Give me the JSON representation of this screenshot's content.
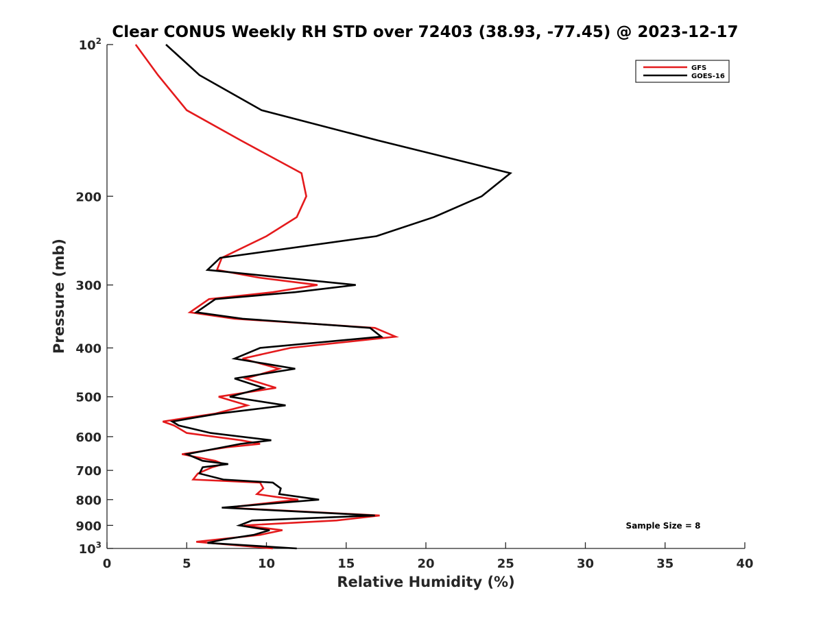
{
  "chart_data": {
    "type": "line",
    "title": "Clear CONUS Weekly RH STD over 72403 (38.93, -77.45) @ 2023-12-17",
    "xlabel": "Relative Humidity (%)",
    "ylabel": "Pressure (mb)",
    "xlim": [
      0,
      40
    ],
    "ylim": [
      100,
      1000
    ],
    "y_scale": "log",
    "y_reversed": true,
    "grid": false,
    "legend_position": "top-right",
    "x_ticks": [
      "0",
      "5",
      "10",
      "15",
      "20",
      "25",
      "30",
      "35",
      "40"
    ],
    "y_ticks": [
      {
        "value": 100,
        "base": "10",
        "exp": "2"
      },
      {
        "value": 200,
        "label": "200"
      },
      {
        "value": 300,
        "label": "300"
      },
      {
        "value": 400,
        "label": "400"
      },
      {
        "value": 500,
        "label": "500"
      },
      {
        "value": 600,
        "label": "600"
      },
      {
        "value": 700,
        "label": "700"
      },
      {
        "value": 800,
        "label": "800"
      },
      {
        "value": 900,
        "label": "900"
      },
      {
        "value": 1000,
        "base": "10",
        "exp": "3"
      }
    ],
    "annotation": "Sample Size = 8",
    "series": [
      {
        "name": "GFS",
        "color": "#e41a1c",
        "points": [
          [
            1.8,
            100
          ],
          [
            3.2,
            115
          ],
          [
            5.0,
            135
          ],
          [
            8.4,
            155
          ],
          [
            12.2,
            180
          ],
          [
            12.5,
            200
          ],
          [
            11.9,
            220
          ],
          [
            10.0,
            240
          ],
          [
            7.2,
            265
          ],
          [
            6.9,
            280
          ],
          [
            9.5,
            290
          ],
          [
            13.2,
            300
          ],
          [
            10.4,
            310
          ],
          [
            6.4,
            320
          ],
          [
            5.2,
            340
          ],
          [
            8.0,
            350
          ],
          [
            16.8,
            365
          ],
          [
            18.1,
            380
          ],
          [
            11.5,
            400
          ],
          [
            8.5,
            420
          ],
          [
            10.8,
            440
          ],
          [
            8.7,
            460
          ],
          [
            10.6,
            480
          ],
          [
            7.0,
            500
          ],
          [
            8.8,
            520
          ],
          [
            6.8,
            540
          ],
          [
            5.1,
            550
          ],
          [
            3.5,
            560
          ],
          [
            4.2,
            570
          ],
          [
            5.0,
            590
          ],
          [
            8.4,
            610
          ],
          [
            9.6,
            620
          ],
          [
            7.5,
            630
          ],
          [
            4.7,
            650
          ],
          [
            6.8,
            670
          ],
          [
            7.3,
            680
          ],
          [
            6.6,
            690
          ],
          [
            5.7,
            710
          ],
          [
            5.4,
            730
          ],
          [
            9.6,
            740
          ],
          [
            9.8,
            760
          ],
          [
            9.4,
            780
          ],
          [
            10.6,
            790
          ],
          [
            12.0,
            800
          ],
          [
            7.5,
            830
          ],
          [
            17.1,
            860
          ],
          [
            14.4,
            880
          ],
          [
            8.6,
            900
          ],
          [
            11.0,
            920
          ],
          [
            9.6,
            940
          ],
          [
            5.6,
            970
          ],
          [
            10.4,
            1000
          ]
        ]
      },
      {
        "name": "GOES-16",
        "color": "#000000",
        "points": [
          [
            3.7,
            100
          ],
          [
            5.8,
            115
          ],
          [
            9.7,
            135
          ],
          [
            17.0,
            155
          ],
          [
            25.3,
            180
          ],
          [
            23.5,
            200
          ],
          [
            20.5,
            220
          ],
          [
            16.9,
            240
          ],
          [
            7.1,
            265
          ],
          [
            6.3,
            280
          ],
          [
            11.0,
            290
          ],
          [
            15.6,
            300
          ],
          [
            11.8,
            310
          ],
          [
            6.8,
            320
          ],
          [
            5.6,
            340
          ],
          [
            8.5,
            350
          ],
          [
            16.5,
            365
          ],
          [
            17.2,
            380
          ],
          [
            9.6,
            400
          ],
          [
            8.0,
            420
          ],
          [
            11.8,
            440
          ],
          [
            8.0,
            460
          ],
          [
            9.8,
            480
          ],
          [
            7.7,
            500
          ],
          [
            11.2,
            520
          ],
          [
            7.0,
            540
          ],
          [
            5.5,
            550
          ],
          [
            4.1,
            560
          ],
          [
            4.5,
            570
          ],
          [
            6.5,
            590
          ],
          [
            10.3,
            610
          ],
          [
            8.4,
            620
          ],
          [
            5.0,
            650
          ],
          [
            6.0,
            670
          ],
          [
            7.6,
            680
          ],
          [
            6.0,
            690
          ],
          [
            5.8,
            710
          ],
          [
            7.3,
            730
          ],
          [
            10.4,
            740
          ],
          [
            10.9,
            760
          ],
          [
            10.8,
            780
          ],
          [
            13.3,
            800
          ],
          [
            7.2,
            830
          ],
          [
            16.8,
            860
          ],
          [
            9.1,
            880
          ],
          [
            8.3,
            900
          ],
          [
            10.2,
            920
          ],
          [
            9.2,
            940
          ],
          [
            7.3,
            960
          ],
          [
            6.3,
            975
          ],
          [
            11.9,
            1000
          ]
        ]
      }
    ]
  }
}
